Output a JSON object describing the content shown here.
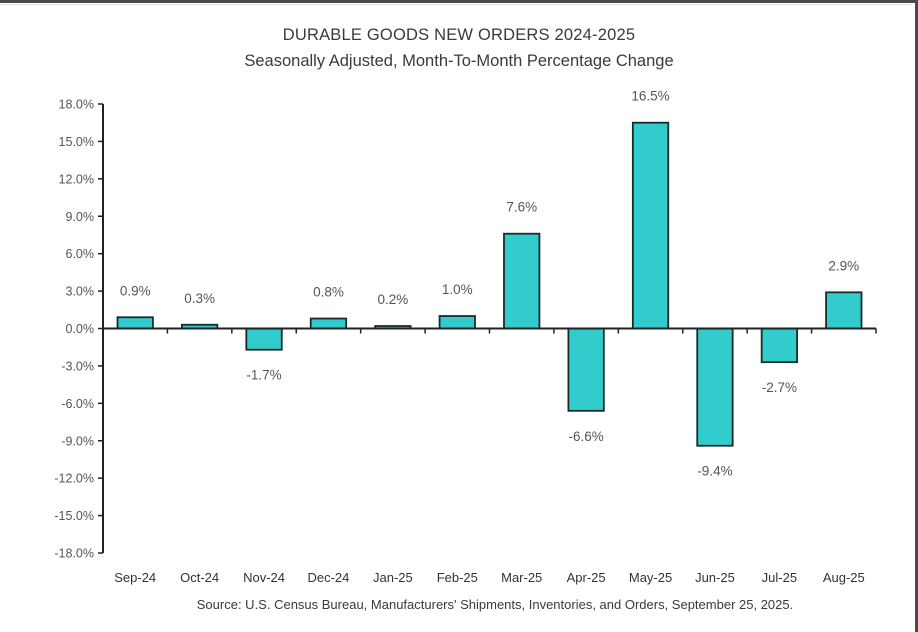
{
  "chart_data": {
    "type": "bar",
    "title": "DURABLE GOODS NEW ORDERS 2024-2025",
    "subtitle": "Seasonally Adjusted,  Month-To-Month Percentage Change",
    "source": "Source: U.S. Census Bureau, Manufacturers' Shipments, Inventories, and Orders, September 25, 2025.",
    "xlabel": "",
    "ylabel": "",
    "ylim": [
      -18,
      18
    ],
    "y_ticks": [
      18,
      15,
      12,
      9,
      6,
      3,
      0,
      -3,
      -6,
      -9,
      -12,
      -15,
      -18
    ],
    "y_tick_labels": [
      "18.0%",
      "15.0%",
      "12.0%",
      "9.0%",
      "6.0%",
      "3.0%",
      "0.0%",
      "-3.0%",
      "-6.0%",
      "-9.0%",
      "-12.0%",
      "-15.0%",
      "-18.0%"
    ],
    "categories": [
      "Sep-24",
      "Oct-24",
      "Nov-24",
      "Dec-24",
      "Jan-25",
      "Feb-25",
      "Mar-25",
      "Apr-25",
      "May-25",
      "Jun-25",
      "Jul-25",
      "Aug-25"
    ],
    "values": [
      0.9,
      0.3,
      -1.7,
      0.8,
      0.2,
      1.0,
      7.6,
      -6.6,
      16.5,
      -9.4,
      -2.7,
      2.9
    ],
    "data_labels": [
      "0.9%",
      "0.3%",
      "-1.7%",
      "0.8%",
      "0.2%",
      "1.0%",
      "7.6%",
      "-6.6%",
      "16.5%",
      "-9.4%",
      "-2.7%",
      "2.9%"
    ],
    "grid": false,
    "legend": "none",
    "colors": {
      "bar_fill": "#33CCCC",
      "bar_outline": "#1a2a2a",
      "axis": "#222222"
    }
  }
}
